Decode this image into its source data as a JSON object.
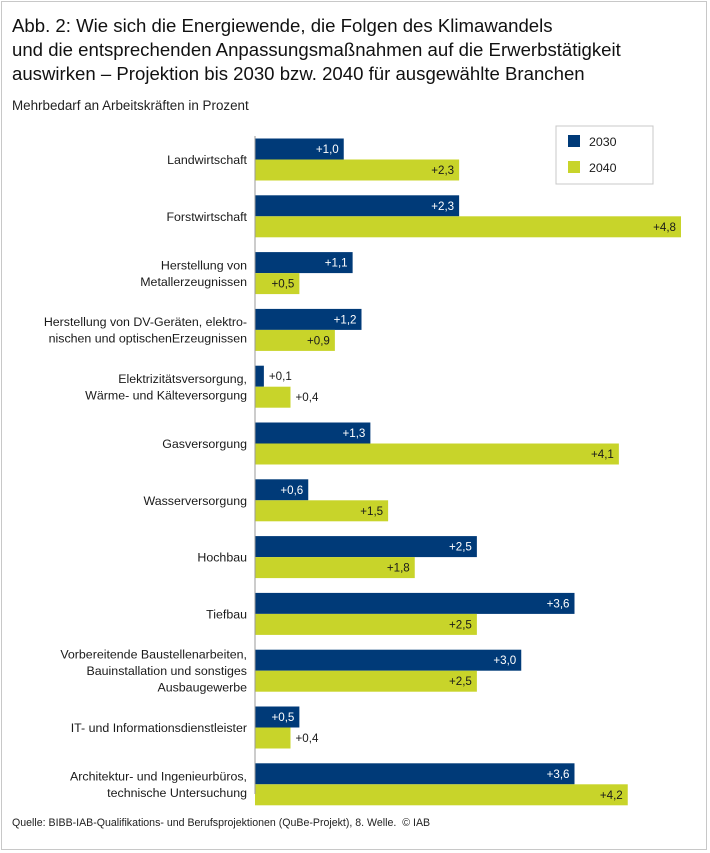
{
  "title_lines": [
    "Abb. 2: Wie sich die Energiewende, die Folgen des Klimawandels",
    "und die entsprechenden Anpassungsmaßnahmen auf die Erwerbstätigkeit",
    "auswirken – Projektion bis 2030 bzw. 2040 für ausgewählte Branchen"
  ],
  "subtitle": "Mehrbedarf an Arbeitskräften in Prozent",
  "source": "Quelle: BIBB-IAB-Qualifikations- und Berufsprojektionen (QuBe-Projekt), 8. Welle.",
  "copyright": "© IAB",
  "colors": {
    "s2030": "#003a78",
    "s2040": "#c8d42a"
  },
  "chart_data": {
    "type": "bar",
    "orientation": "horizontal",
    "title": "Mehrbedarf an Arbeitskräften in Prozent",
    "xlim": [
      0,
      4.8
    ],
    "legend_position": "top-right",
    "categories": [
      [
        "Landwirtschaft"
      ],
      [
        "Forstwirtschaft"
      ],
      [
        "Herstellung von",
        "Metallerzeugnissen"
      ],
      [
        "Herstellung von DV-Geräten, elektro-",
        "nischen und optischenErzeugnissen"
      ],
      [
        "Elektrizitätsversorgung,",
        "Wärme- und Kälteversorgung"
      ],
      [
        "Gasversorgung"
      ],
      [
        "Wasserversorgung"
      ],
      [
        "Hochbau"
      ],
      [
        "Tiefbau"
      ],
      [
        "Vorbereitende Baustellenarbeiten,",
        "Bauinstallation und sonstiges",
        "Ausbaugewerbe"
      ],
      [
        "IT- und Informationsdienstleister"
      ],
      [
        "Architektur- und Ingenieurbüros,",
        "technische Untersuchung"
      ]
    ],
    "series": [
      {
        "name": "2030",
        "values": [
          1.0,
          2.3,
          1.1,
          1.2,
          0.1,
          1.3,
          0.6,
          2.5,
          3.6,
          3.0,
          0.5,
          3.6
        ],
        "labels": [
          "+1,0",
          "+2,3",
          "+1,1",
          "+1,2",
          "+0,1",
          "+1,3",
          "+0,6",
          "+2,5",
          "+3,6",
          "+3,0",
          "+0,5",
          "+3,6"
        ]
      },
      {
        "name": "2040",
        "values": [
          2.3,
          4.8,
          0.5,
          0.9,
          0.4,
          4.1,
          1.5,
          1.8,
          2.5,
          2.5,
          0.4,
          4.2
        ],
        "labels": [
          "+2,3",
          "+4,8",
          "+0,5",
          "+0,9",
          "+0,4",
          "+4,1",
          "+1,5",
          "+1,8",
          "+2,5",
          "+2,5",
          "+0,4",
          "+4,2"
        ]
      }
    ]
  }
}
